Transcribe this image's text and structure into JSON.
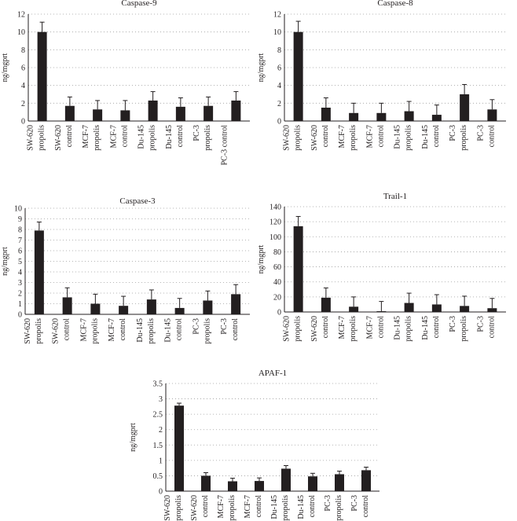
{
  "colors": {
    "bar": "#231f20",
    "grid": "#9d9d9d",
    "axis": "#231f20",
    "text": "#231f20"
  },
  "chart_data": [
    {
      "type": "bar",
      "title": "Caspase-9",
      "ylabel": "ng/mgprt",
      "xlabel": "",
      "ylim": [
        0,
        12
      ],
      "yticks": [
        0,
        2,
        4,
        6,
        8,
        10,
        12
      ],
      "grid": true,
      "categories": [
        [
          "SW-620",
          "propolis"
        ],
        [
          "SW-620",
          "control"
        ],
        [
          "MCF-7",
          "propolis"
        ],
        [
          "MCF-7",
          "control"
        ],
        [
          "Du-145",
          "propolis"
        ],
        [
          "Du-145",
          "control"
        ],
        [
          "PC-3",
          "propolis"
        ],
        [
          "PC-3 control"
        ]
      ],
      "values": [
        10.0,
        1.7,
        1.3,
        1.2,
        2.3,
        1.6,
        1.7,
        2.3
      ],
      "errors": [
        1.1,
        1.0,
        1.0,
        1.1,
        1.0,
        1.0,
        1.0,
        1.0
      ]
    },
    {
      "type": "bar",
      "title": "Caspase-8",
      "ylabel": "ng/mgprt",
      "xlabel": "",
      "ylim": [
        0,
        12
      ],
      "yticks": [
        0,
        2,
        4,
        6,
        8,
        10,
        12
      ],
      "grid": true,
      "categories": [
        [
          "SW-620",
          "propolis"
        ],
        [
          "SW-620",
          "control"
        ],
        [
          "MCF-7",
          "propolis"
        ],
        [
          "MCF-7",
          "control"
        ],
        [
          "Du-145",
          "propolis"
        ],
        [
          "Du-145",
          "control"
        ],
        [
          "PC-3",
          "propolis"
        ],
        [
          "PC-3",
          "control"
        ]
      ],
      "values": [
        10.0,
        1.5,
        0.9,
        0.9,
        1.1,
        0.7,
        3.0,
        1.3
      ],
      "errors": [
        1.2,
        1.1,
        1.1,
        1.1,
        1.1,
        1.1,
        1.1,
        1.1
      ]
    },
    {
      "type": "bar",
      "title": "Caspase-3",
      "ylabel": "ng/mgprt",
      "xlabel": "",
      "ylim": [
        0,
        10
      ],
      "yticks": [
        0,
        1,
        2,
        3,
        4,
        5,
        6,
        7,
        8,
        9,
        10
      ],
      "grid": true,
      "categories": [
        [
          "SW-620",
          "propolis"
        ],
        [
          "SW-620",
          "control"
        ],
        [
          "MCF-7",
          "propolis"
        ],
        [
          "MCF-7",
          "control"
        ],
        [
          "Du-145",
          "propolis"
        ],
        [
          "Du-145",
          "control"
        ],
        [
          "PC-3",
          "propolis"
        ],
        [
          "PC-3",
          "control"
        ]
      ],
      "values": [
        7.9,
        1.6,
        1.0,
        0.8,
        1.4,
        0.6,
        1.3,
        1.9
      ],
      "errors": [
        0.8,
        0.9,
        0.9,
        0.9,
        0.9,
        0.9,
        0.9,
        0.9
      ]
    },
    {
      "type": "bar",
      "title": "Trail-1",
      "ylabel": "ng/mgprt",
      "xlabel": "",
      "ylim": [
        0,
        140
      ],
      "yticks": [
        0,
        20,
        40,
        60,
        80,
        100,
        120,
        140
      ],
      "grid": true,
      "categories": [
        [
          "SW-620",
          "propolis"
        ],
        [
          "SW-620",
          "control"
        ],
        [
          "MCF-7",
          "propolis"
        ],
        [
          "MCF-7",
          "control"
        ],
        [
          "Du-145",
          "propolis"
        ],
        [
          "Du-145",
          "control"
        ],
        [
          "PC-3",
          "propolis"
        ],
        [
          "PC-3",
          "control"
        ]
      ],
      "values": [
        114,
        19,
        7,
        1,
        12,
        10,
        8,
        5
      ],
      "errors": [
        13,
        13,
        13,
        13,
        13,
        13,
        13,
        13
      ]
    },
    {
      "type": "bar",
      "title": "APAF-1",
      "ylabel": "ng/mgprt",
      "xlabel": "",
      "ylim": [
        0,
        3.5
      ],
      "yticks": [
        0,
        0.5,
        1,
        1.5,
        2,
        2.5,
        3,
        3.5
      ],
      "grid": true,
      "categories": [
        [
          "SW-620",
          "propolis"
        ],
        [
          "SW-620",
          "control"
        ],
        [
          "MCF-7",
          "propolis"
        ],
        [
          "MCF-7",
          "control"
        ],
        [
          "Du-145",
          "propolis"
        ],
        [
          "Du-145",
          "control"
        ],
        [
          "PC-3",
          "propolis"
        ],
        [
          "PC-3",
          "control"
        ]
      ],
      "values": [
        2.78,
        0.5,
        0.32,
        0.33,
        0.73,
        0.48,
        0.55,
        0.68
      ],
      "errors": [
        0.08,
        0.1,
        0.1,
        0.1,
        0.1,
        0.1,
        0.1,
        0.1
      ]
    }
  ]
}
